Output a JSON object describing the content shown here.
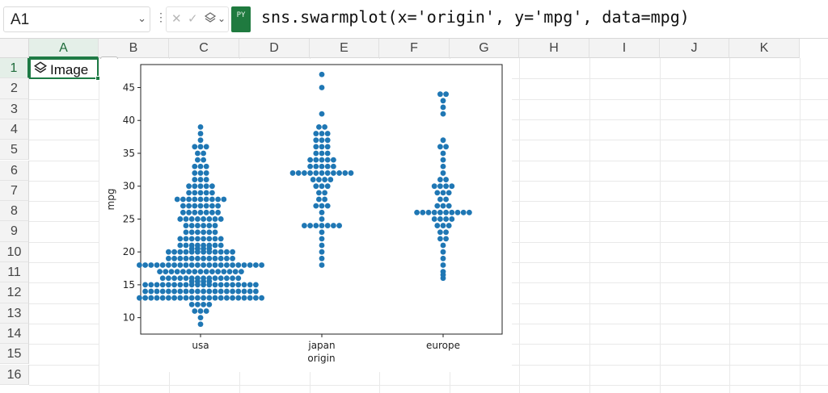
{
  "formula_bar": {
    "name_box": "A1",
    "formula": "sns.swarmplot(x='origin', y='mpg', data=mpg)",
    "py_badge": "PY",
    "cancel_glyph": "✕",
    "enter_glyph": "✓"
  },
  "grid": {
    "columns": [
      "A",
      "B",
      "C",
      "D",
      "E",
      "F",
      "G",
      "H",
      "I",
      "J",
      "K"
    ],
    "rows": [
      "1",
      "2",
      "3",
      "4",
      "5",
      "6",
      "7",
      "8",
      "9",
      "10",
      "11",
      "12",
      "13",
      "14",
      "15",
      "16"
    ],
    "selected_cell": "A1",
    "cell_a1_value": "Image"
  },
  "colors": {
    "accent": "#1e7b45",
    "point": "#1f77b4"
  },
  "chart_data": {
    "type": "scatter",
    "subtype": "swarm",
    "xlabel": "origin",
    "ylabel": "mpg",
    "categories": [
      "usa",
      "japan",
      "europe"
    ],
    "yticks": [
      10,
      15,
      20,
      25,
      30,
      35,
      40,
      45
    ],
    "ylim": [
      7.5,
      48.5
    ],
    "series": [
      {
        "category": "usa",
        "values": [
          9,
          10,
          11,
          11,
          11,
          12,
          12,
          12,
          12,
          13,
          13,
          13,
          13,
          13,
          13,
          13,
          13,
          13,
          13,
          13,
          13,
          13,
          13,
          13,
          13,
          13,
          13,
          13,
          13,
          13,
          13,
          14,
          14,
          14,
          14,
          14,
          14,
          14,
          14,
          14,
          14,
          14,
          14,
          14,
          14,
          14,
          14,
          14,
          14,
          14,
          14,
          15,
          15,
          15,
          15,
          15,
          15,
          15,
          15,
          15,
          15,
          15,
          15,
          15,
          15,
          15,
          15,
          15,
          15,
          15,
          15,
          15.5,
          15.5,
          15.5,
          15.5,
          16,
          16,
          16,
          16,
          16,
          16,
          16,
          16,
          16,
          16,
          16,
          16,
          16,
          16,
          17,
          17,
          17,
          17,
          17,
          17,
          17,
          17,
          17,
          17,
          17,
          17,
          17,
          17,
          17,
          18,
          18,
          18,
          18,
          18,
          18,
          18,
          18,
          18,
          18,
          18,
          18,
          18,
          18,
          18,
          18,
          18,
          18,
          18,
          18,
          18,
          18,
          19,
          19,
          19,
          19,
          19,
          19,
          19,
          19,
          19,
          19,
          19,
          19,
          20,
          20,
          20,
          20,
          20,
          20,
          20,
          20,
          20,
          20,
          20,
          20,
          20.5,
          20.5,
          20.5,
          20.5,
          21,
          21,
          21,
          21,
          21,
          21,
          21,
          21,
          22,
          22,
          22,
          22,
          22,
          22,
          22,
          22,
          23,
          23,
          23,
          23,
          23,
          23,
          24,
          24,
          24,
          24,
          24,
          24,
          25,
          25,
          25,
          25,
          25,
          25,
          25,
          25,
          26,
          26,
          26,
          26,
          26,
          26,
          26,
          27,
          27,
          27,
          27,
          27,
          27,
          27,
          28,
          28,
          28,
          28,
          28,
          28,
          28,
          28,
          28,
          29,
          29,
          29,
          29,
          29,
          30,
          30,
          30,
          30,
          30,
          31,
          31,
          31,
          32,
          32,
          32,
          33,
          33,
          33,
          34,
          34,
          35,
          35,
          36,
          36,
          36,
          37,
          38,
          39
        ]
      },
      {
        "category": "japan",
        "values": [
          18,
          19,
          20,
          21,
          22,
          23,
          24,
          24,
          24,
          24,
          24,
          24,
          24,
          25,
          26,
          27,
          27,
          27,
          28,
          28,
          29,
          29,
          30,
          30,
          30,
          31,
          31,
          31,
          31,
          32,
          32,
          32,
          32,
          32,
          32,
          32,
          32,
          32,
          32,
          32,
          33,
          33,
          33,
          33,
          33,
          34,
          34,
          34,
          34,
          34,
          35,
          35,
          35,
          36,
          36,
          36,
          37,
          37,
          37,
          38,
          38,
          38,
          39,
          39,
          41,
          45,
          47
        ]
      },
      {
        "category": "europe",
        "values": [
          16,
          16.5,
          17,
          18,
          19,
          20,
          21,
          22,
          22,
          23,
          23,
          24,
          24,
          24,
          25,
          25,
          25,
          25,
          26,
          26,
          26,
          26,
          26,
          26,
          26,
          26,
          26,
          26,
          27,
          27,
          27,
          28,
          28,
          29,
          29,
          29,
          30,
          30,
          30,
          30,
          31,
          31,
          32,
          33,
          34,
          35,
          36,
          36,
          37,
          41,
          42,
          43,
          44,
          44
        ]
      }
    ]
  }
}
